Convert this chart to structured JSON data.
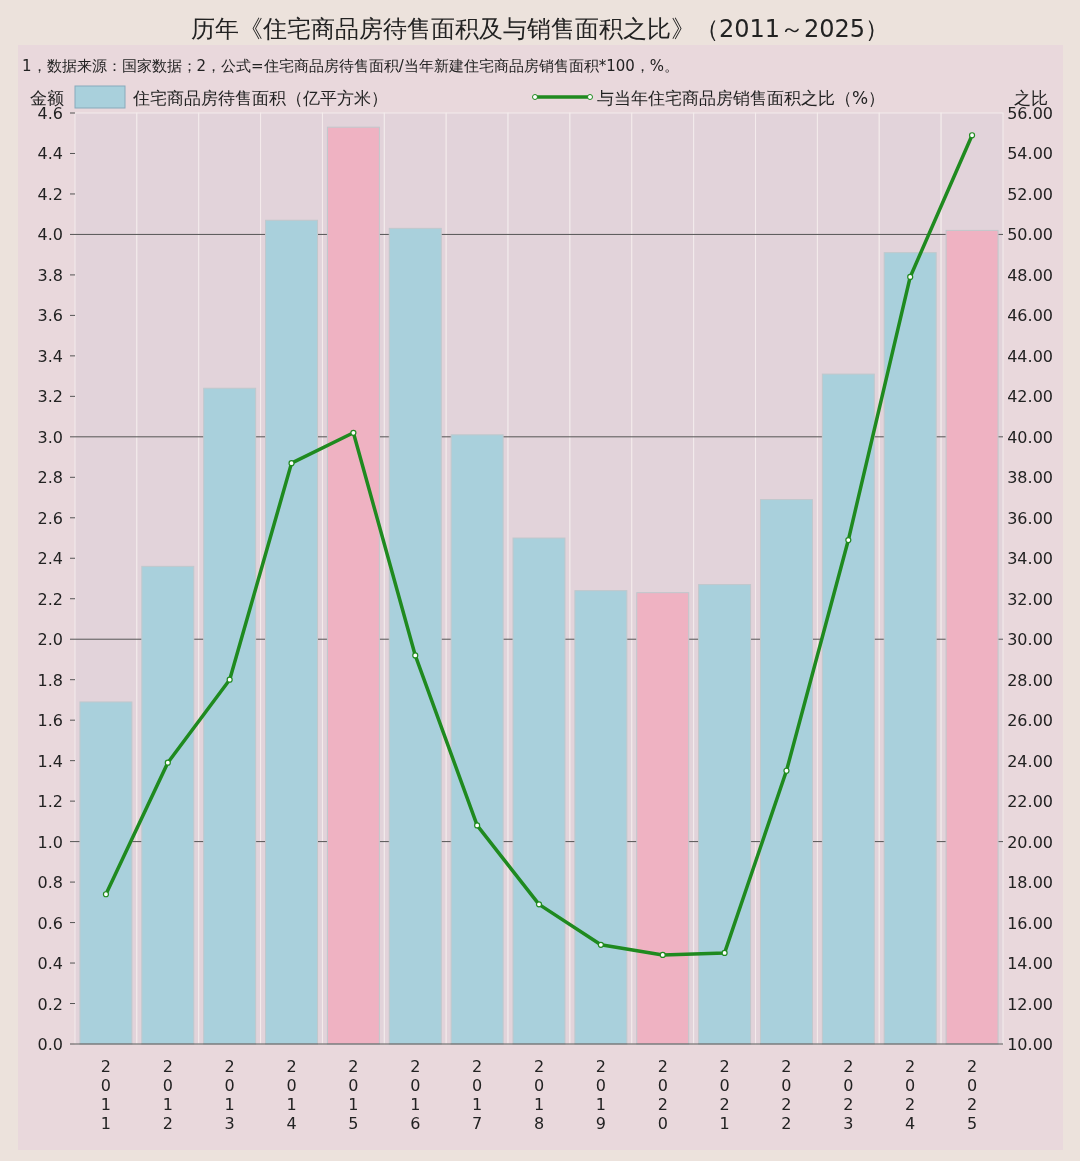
{
  "chart_data": {
    "type": "bar",
    "title": "历年《住宅商品房待售面积及与销售面积之比》（2011～2025）",
    "subtitle": "1，数据来源：国家数据；2，公式=住宅商品房待售面积/当年新建住宅商品房销售面积*100，%。",
    "ylabel": "金额",
    "y2label": "之比",
    "categories": [
      "2011",
      "2012",
      "2013",
      "2014",
      "2015",
      "2016",
      "2017",
      "2018",
      "2019",
      "2020",
      "2021",
      "2022",
      "2023",
      "2024",
      "2025"
    ],
    "series": [
      {
        "name": "住宅商品房待售面积（亿平方米）",
        "color": "#a9d0dc",
        "colors": [
          "#a9d0dc",
          "#a9d0dc",
          "#a9d0dc",
          "#a9d0dc",
          "#efb2c2",
          "#a9d0dc",
          "#a9d0dc",
          "#a9d0dc",
          "#a9d0dc",
          "#efb2c2",
          "#a9d0dc",
          "#a9d0dc",
          "#a9d0dc",
          "#a9d0dc",
          "#efb2c2"
        ],
        "values": [
          1.69,
          2.36,
          3.24,
          4.07,
          4.53,
          4.03,
          3.01,
          2.5,
          2.24,
          2.23,
          2.27,
          2.69,
          3.31,
          3.91,
          4.02
        ]
      },
      {
        "name": "与当年住宅商品房销售面积之比（%）",
        "type": "line",
        "axis": "y2",
        "color": "#1f8a1f",
        "values": [
          17.4,
          23.9,
          28.0,
          38.7,
          40.2,
          29.2,
          20.8,
          16.9,
          14.9,
          14.4,
          14.5,
          23.5,
          34.9,
          47.9,
          54.9
        ]
      }
    ],
    "ylim": [
      0,
      4.6
    ],
    "yticks": [
      {
        "value": 0,
        "label": "0.0"
      },
      0.2,
      0.4,
      0.6,
      0.8,
      {
        "value": 1,
        "label": "1.0"
      },
      1.2,
      1.4,
      1.6,
      1.8,
      {
        "value": 2,
        "label": "2.0"
      },
      2.2,
      2.4,
      2.6,
      2.8,
      {
        "value": 3,
        "label": "3.0"
      },
      3.2,
      3.4,
      3.6,
      3.8,
      {
        "value": 4,
        "label": "4.0"
      },
      4.2,
      4.4,
      4.6
    ],
    "y2lim": [
      10,
      56
    ],
    "y2ticks": [
      {
        "value": 10,
        "label": "10.00"
      },
      {
        "value": 12,
        "label": "12.00"
      },
      {
        "value": 14,
        "label": "14.00"
      },
      {
        "value": 16,
        "label": "16.00"
      },
      {
        "value": 18,
        "label": "18.00"
      },
      {
        "value": 20,
        "label": "20.00"
      },
      {
        "value": 22,
        "label": "22.00"
      },
      {
        "value": 24,
        "label": "24.00"
      },
      {
        "value": 26,
        "label": "26.00"
      },
      {
        "value": 28,
        "label": "28.00"
      },
      {
        "value": 30,
        "label": "30.00"
      },
      {
        "value": 32,
        "label": "32.00"
      },
      {
        "value": 34,
        "label": "34.00"
      },
      {
        "value": 36,
        "label": "36.00"
      },
      {
        "value": 38,
        "label": "38.00"
      },
      {
        "value": 40,
        "label": "40.00"
      },
      {
        "value": 42,
        "label": "42.00"
      },
      {
        "value": 44,
        "label": "44.00"
      },
      {
        "value": 46,
        "label": "46.00"
      },
      {
        "value": 48,
        "label": "48.00"
      },
      {
        "value": 50,
        "label": "50.00"
      },
      {
        "value": 52,
        "label": "52.00"
      },
      {
        "value": 54,
        "label": "54.00"
      },
      {
        "value": 56,
        "label": "56.00"
      }
    ],
    "ref_lines": [
      {
        "axis": "y",
        "value": 1,
        "color": "#555555"
      },
      {
        "axis": "y",
        "value": 2,
        "color": "#555555"
      },
      {
        "axis": "y",
        "value": 3,
        "color": "#555555"
      },
      {
        "axis": "y",
        "value": 4,
        "color": "#555555"
      }
    ],
    "legend": "top",
    "marker": "circle"
  }
}
